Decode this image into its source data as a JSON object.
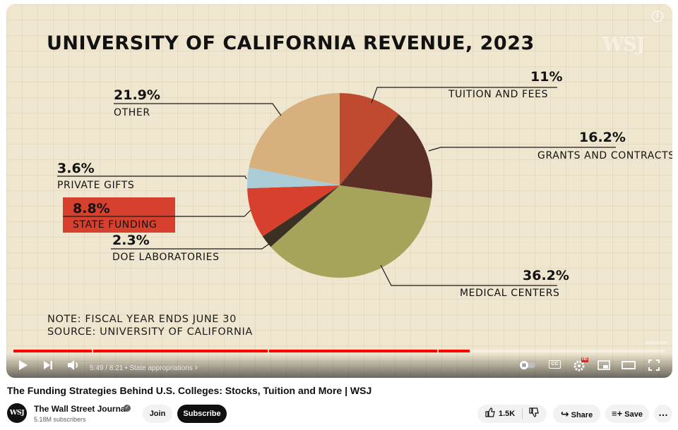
{
  "player": {
    "info_icon": "i",
    "time": "5:49 / 8:21",
    "chapter": "State appropriations",
    "chapter_chevron": "›",
    "progress": 0.7,
    "chapter_marks": [
      0.12,
      0.39,
      0.65
    ],
    "watermark": "subscribe",
    "cc_label": "CC",
    "hd_badge": "HD",
    "icons": [
      "play-icon",
      "next-icon",
      "volume-icon",
      "autoplay-toggle-icon",
      "captions-icon",
      "settings-icon",
      "miniplayer-icon",
      "theater-icon",
      "fullscreen-icon"
    ]
  },
  "chart_data": {
    "type": "pie",
    "title": "UNIVERSITY OF CALIFORNIA REVENUE, 2023",
    "brand": "WSJ",
    "slices": [
      {
        "label": "TUITION AND FEES",
        "value": 11,
        "pct": "11%",
        "color": "#bf4a30"
      },
      {
        "label": "GRANTS AND CONTRACTS",
        "value": 16.2,
        "pct": "16.2%",
        "color": "#5b2e26"
      },
      {
        "label": "MEDICAL CENTERS",
        "value": 36.2,
        "pct": "36.2%",
        "color": "#a6a35a"
      },
      {
        "label": "DOE LABORATORIES",
        "value": 2.3,
        "pct": "2.3%",
        "color": "#3a3124"
      },
      {
        "label": "STATE FUNDING",
        "value": 8.8,
        "pct": "8.8%",
        "color": "#d8402e"
      },
      {
        "label": "PRIVATE GIFTS",
        "value": 3.6,
        "pct": "3.6%",
        "color": "#a9ccd6"
      },
      {
        "label": "OTHER",
        "value": 21.9,
        "pct": "21.9%",
        "color": "#d8b07d"
      }
    ],
    "highlighted": "STATE FUNDING",
    "note_line1": "NOTE: FISCAL YEAR ENDS JUNE 30",
    "note_line2": "SOURCE: UNIVERSITY OF CALIFORNIA"
  },
  "video": {
    "title": "The Funding Strategies Behind U.S. Colleges: Stocks, Tuition and More | WSJ",
    "channel": "The Wall Street Journal",
    "avatar_text": "WSJ",
    "subscribers": "5.18M subscribers",
    "join_label": "Join",
    "subscribe_label": "Subscribe",
    "likes": "1.5K",
    "share_label": "Share",
    "save_label": "Save"
  }
}
